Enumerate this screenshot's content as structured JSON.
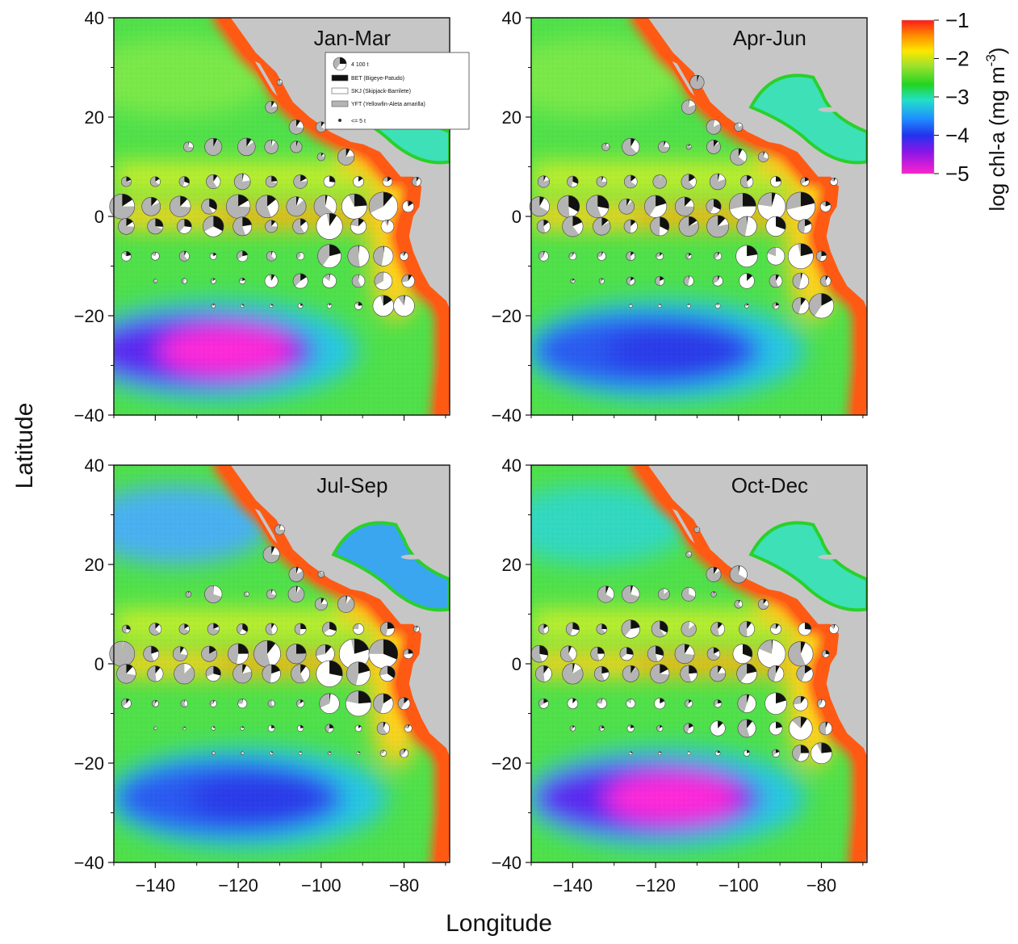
{
  "figure": {
    "xlabel": "Longitude",
    "ylabel": "Latitude",
    "x_ticks": [
      "−140",
      "−120",
      "−100",
      "−80"
    ],
    "y_ticks": [
      "40",
      "20",
      "0",
      "−20",
      "−40"
    ]
  },
  "colorbar": {
    "label": "log chl-a (mg m",
    "label_sup": "-3",
    "label_close": ")",
    "ticks": [
      "−1",
      "−2",
      "−3",
      "−4",
      "−5"
    ],
    "colors": [
      "#ff1a1a",
      "#ff8c00",
      "#ffe600",
      "#9be22d",
      "#22d422",
      "#22e0c8",
      "#1e90ff",
      "#2233ee",
      "#8a16e8",
      "#ff22cc"
    ]
  },
  "legend": {
    "size_label": "4 100 t",
    "entries": [
      {
        "label": "BET (Bigeye-Patudo)",
        "color": "#111111"
      },
      {
        "label": "SKJ (Skipjack-Barrilete)",
        "color": "#ffffff"
      },
      {
        "label": "YFT (Yellowfin-Aleta amarilla)",
        "color": "#b4b4b4"
      }
    ],
    "small_label": "<= 5 t"
  },
  "colors": {
    "land": "#c6c6c6",
    "coast": "#ff5a14",
    "pie_bet": "#111111",
    "pie_skj": "#ffffff",
    "pie_yft": "#b4b4b4"
  },
  "chart_data": {
    "type": "pie-map",
    "xlim": [
      -150,
      -69
    ],
    "ylim": [
      -40,
      40
    ],
    "colorbar_range": [
      -5,
      -1
    ],
    "panels": [
      {
        "title": "Jan-Mar",
        "chl_zones": {
          "oligotrophic_center": [
            -125,
            -27
          ],
          "minimum_log_chl": -5
        }
      },
      {
        "title": "Apr-Jun",
        "chl_zones": {
          "oligotrophic_center": [
            -118,
            -27
          ],
          "minimum_log_chl": -4
        }
      },
      {
        "title": "Jul-Sep",
        "chl_zones": {
          "oligotrophic_center": [
            -118,
            -27
          ],
          "minimum_log_chl": -4
        }
      },
      {
        "title": "Oct-Dec",
        "chl_zones": {
          "oligotrophic_center": [
            -118,
            -27
          ],
          "minimum_log_chl": -5
        }
      }
    ]
  }
}
